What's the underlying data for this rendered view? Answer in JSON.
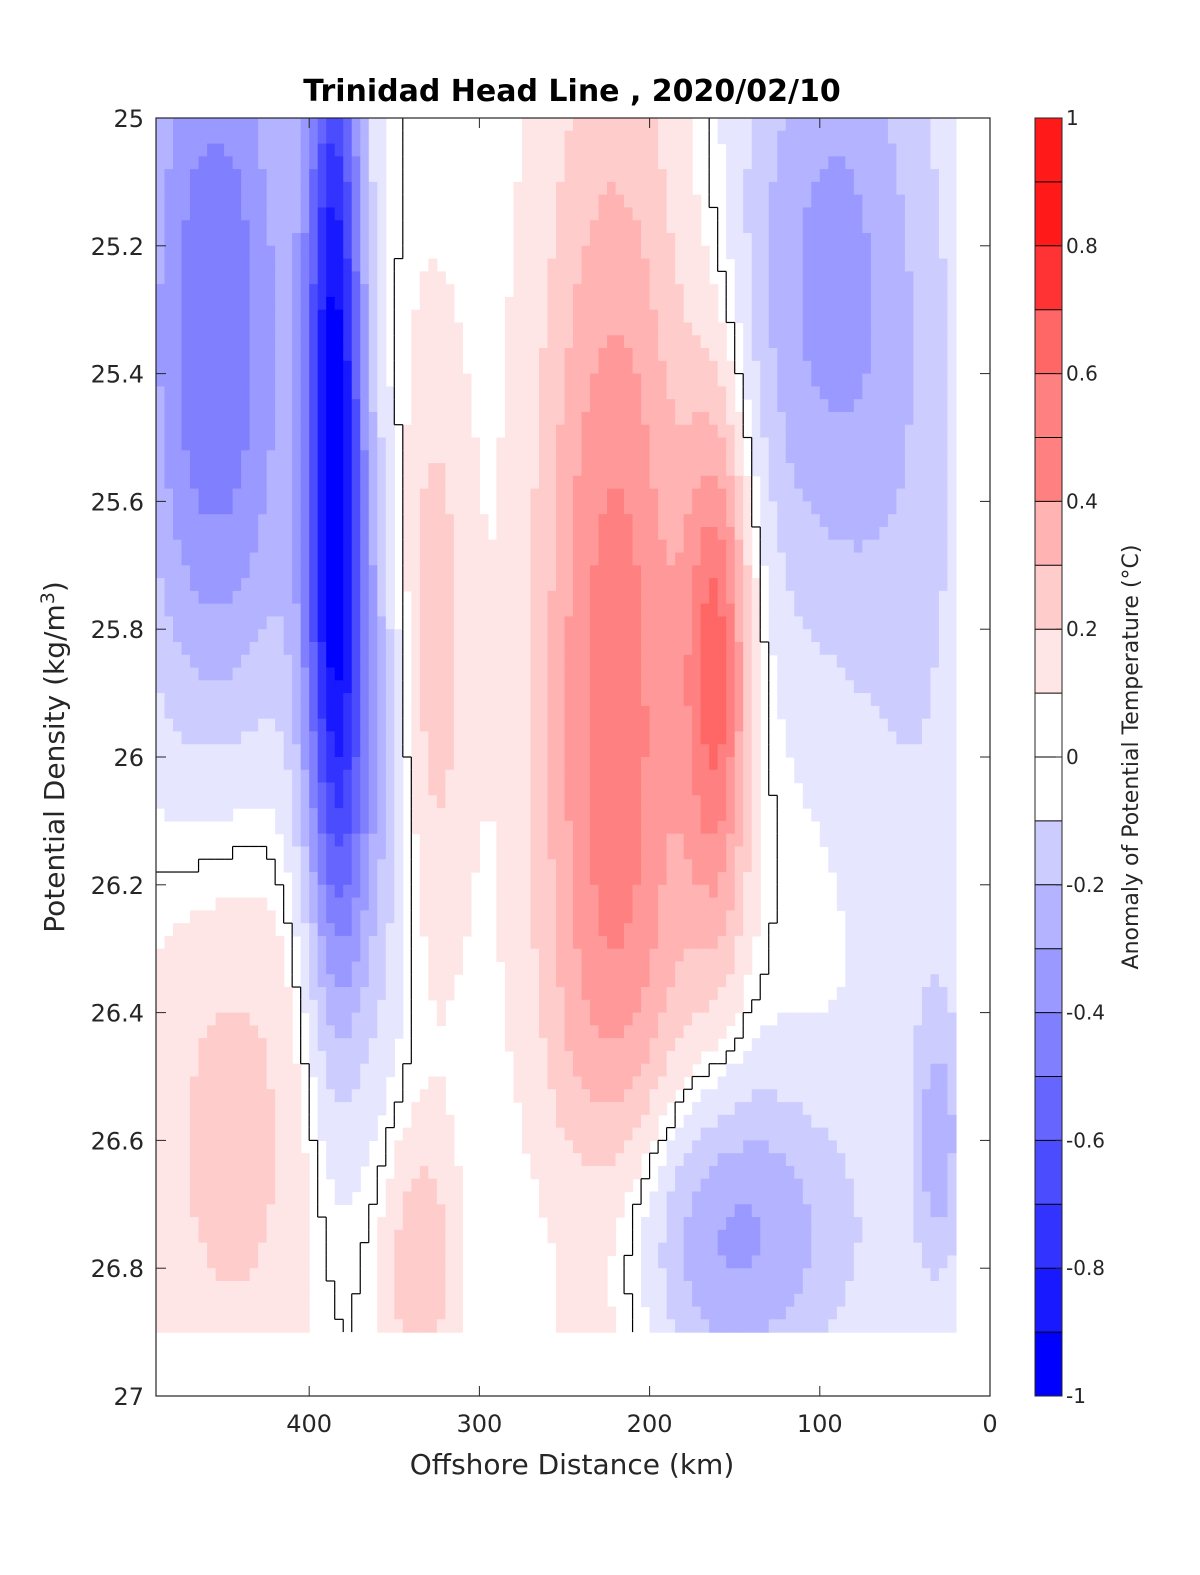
{
  "chart_data": {
    "type": "heatmap",
    "title": "Trinidad Head Line , 2020/02/10",
    "xlabel": "Offshore Distance (km)",
    "ylabel": "Potential Density (kg/m",
    "ylabel_superscript": "3",
    "ylabel_suffix": ")",
    "colorbar_label": "Anomaly of Potential Temperature (°C)",
    "xlim": [
      490,
      0
    ],
    "ylim": [
      25,
      27
    ],
    "x_reversed": true,
    "y_reversed": true,
    "x_ticks": [
      400,
      300,
      200,
      100,
      0
    ],
    "y_ticks": [
      25,
      25.2,
      25.4,
      25.6,
      25.8,
      26,
      26.2,
      26.4,
      26.6,
      26.8,
      27
    ],
    "colorbar_range": [
      -1,
      1
    ],
    "colorbar_ticks": [
      1,
      0.8,
      0.6,
      0.4,
      0.2,
      0,
      -0.2,
      -0.4,
      -0.6,
      -0.8,
      -1
    ],
    "contour_step": 0.1,
    "colormap": {
      "negative": "#0000ff",
      "zero": "#ffffff",
      "positive": "#ff0000"
    },
    "data_x_range": [
      490,
      20
    ],
    "data_y_range": [
      25,
      26.9
    ],
    "features": [
      {
        "x": 385,
        "y": 25.45,
        "value": -0.9,
        "sx": 12,
        "sy": 0.55
      },
      {
        "x": 455,
        "y": 25.35,
        "value": -0.55,
        "sx": 35,
        "sy": 0.5
      },
      {
        "x": 370,
        "y": 26.0,
        "value": -0.35,
        "sx": 25,
        "sy": 0.35
      },
      {
        "x": 330,
        "y": 25.85,
        "value": 0.28,
        "sx": 16,
        "sy": 0.35
      },
      {
        "x": 220,
        "y": 25.95,
        "value": 0.52,
        "sx": 32,
        "sy": 0.7
      },
      {
        "x": 160,
        "y": 25.85,
        "value": 0.55,
        "sx": 14,
        "sy": 0.3
      },
      {
        "x": 95,
        "y": 25.25,
        "value": -0.38,
        "sx": 40,
        "sy": 0.4
      },
      {
        "x": 40,
        "y": 25.9,
        "value": -0.12,
        "sx": 30,
        "sy": 0.6
      },
      {
        "x": 160,
        "y": 26.75,
        "value": -0.4,
        "sx": 55,
        "sy": 0.18
      },
      {
        "x": 445,
        "y": 26.5,
        "value": 0.22,
        "sx": 40,
        "sy": 0.4
      },
      {
        "x": 335,
        "y": 26.8,
        "value": 0.25,
        "sx": 15,
        "sy": 0.15
      },
      {
        "x": 30,
        "y": 26.6,
        "value": -0.25,
        "sx": 10,
        "sy": 0.15
      }
    ]
  }
}
